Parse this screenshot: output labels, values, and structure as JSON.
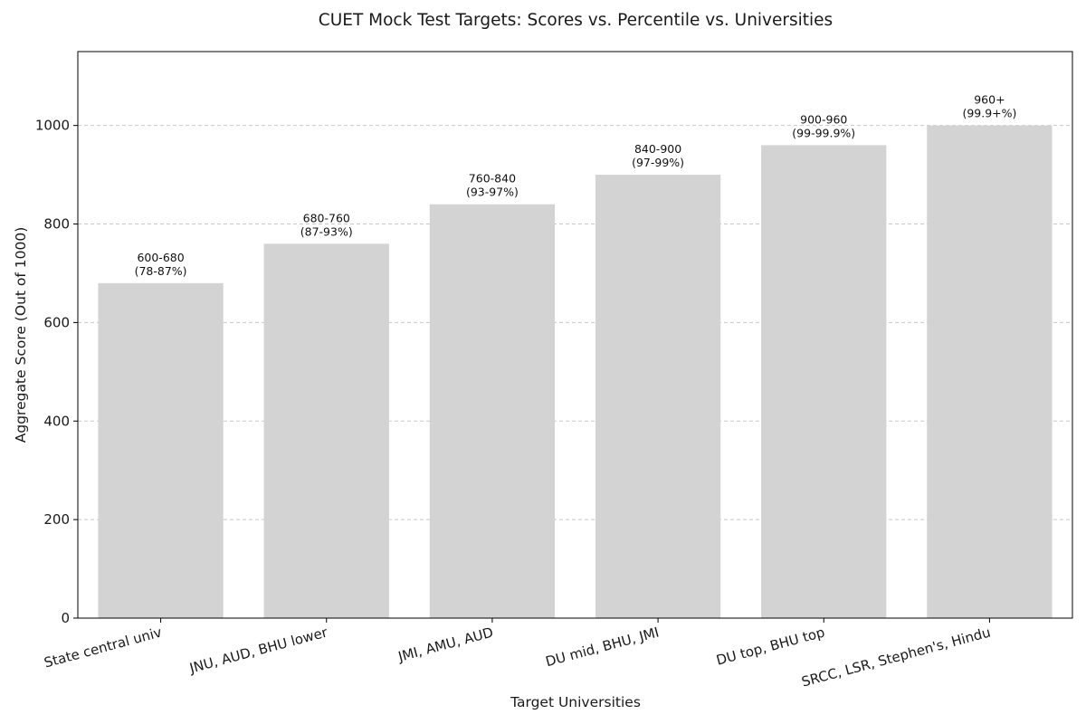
{
  "chart_data": {
    "type": "bar",
    "title": "CUET Mock Test Targets: Scores vs. Percentile vs. Universities",
    "xlabel": "Target Universities",
    "ylabel": "Aggregate Score (Out of 1000)",
    "ylim": [
      0,
      1150
    ],
    "yticks": [
      0,
      200,
      400,
      600,
      800,
      1000
    ],
    "grid": "y, dashed",
    "categories": [
      "State central univ",
      "JNU, AUD, BHU lower",
      "JMI, AMU, AUD",
      "DU mid, BHU, JMI",
      "DU top, BHU top",
      "SRCC, LSR, Stephen's, Hindu"
    ],
    "values": [
      680,
      760,
      840,
      900,
      960,
      1000
    ],
    "data_labels": [
      [
        "600-680",
        "(78-87%)"
      ],
      [
        "680-760",
        "(87-93%)"
      ],
      [
        "760-840",
        "(93-97%)"
      ],
      [
        "840-900",
        "(97-99%)"
      ],
      [
        "900-960",
        "(99-99.9%)"
      ],
      [
        "960+",
        "(99.9+%)"
      ]
    ],
    "bar_color": "#d3d3d3",
    "grid_color": "#c8c8c8"
  }
}
